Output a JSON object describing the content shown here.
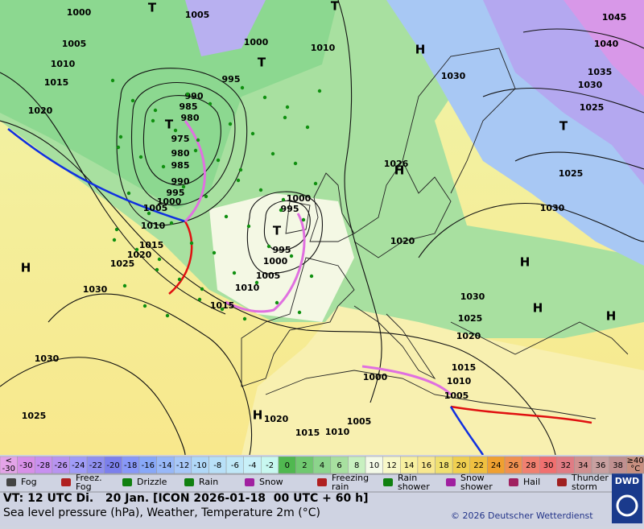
{
  "map": {
    "centers": [
      "H",
      "H",
      "H",
      "H",
      "H",
      "H",
      "H",
      "T",
      "T",
      "T",
      "T",
      "T",
      "T"
    ],
    "pressure_labels": [
      "1000",
      "1005",
      "1045",
      "1040",
      "1035",
      "1030",
      "1025",
      "1025",
      "1030",
      "1020",
      "995",
      "990",
      "985",
      "980",
      "975",
      "980",
      "985",
      "990",
      "995",
      "1000",
      "1005",
      "1010",
      "1015",
      "1020",
      "1025",
      "1030",
      "1030",
      "1025",
      "1020",
      "1015",
      "1010",
      "1005",
      "1000",
      "1000",
      "995",
      "995",
      "1000",
      "1005",
      "1010",
      "1015",
      "1030",
      "1025",
      "1020",
      "1015",
      "1010",
      "1005",
      "1000",
      "1005",
      "1010",
      "1015",
      "1020",
      "1026",
      "1030",
      "1010"
    ]
  },
  "scale": [
    [
      "<",
      "-30"
    ],
    [
      "-30"
    ],
    [
      "-28"
    ],
    [
      "-26"
    ],
    [
      "-24"
    ],
    [
      "-22"
    ],
    [
      "-20"
    ],
    [
      "-18"
    ],
    [
      "-16"
    ],
    [
      "-14"
    ],
    [
      "-12"
    ],
    [
      "-10"
    ],
    [
      "-8"
    ],
    [
      "-6"
    ],
    [
      "-4"
    ],
    [
      "-2"
    ],
    [
      "0"
    ],
    [
      "2"
    ],
    [
      "4"
    ],
    [
      "6"
    ],
    [
      "8"
    ],
    [
      "10"
    ],
    [
      "12"
    ],
    [
      "14"
    ],
    [
      "16"
    ],
    [
      "18"
    ],
    [
      "20"
    ],
    [
      "22"
    ],
    [
      "24"
    ],
    [
      "26"
    ],
    [
      "28"
    ],
    [
      "30"
    ],
    [
      "32"
    ],
    [
      "34"
    ],
    [
      "36"
    ],
    [
      "38"
    ],
    [
      "≥40",
      "°C"
    ]
  ],
  "scale_colors": [
    "#e4a4e8",
    "#d890e8",
    "#c890f0",
    "#b894f0",
    "#a09cf8",
    "#9090f0",
    "#7c80ec",
    "#8898f8",
    "#88a8f8",
    "#98b8f8",
    "#a8c8f8",
    "#b0d8f8",
    "#b8e0f8",
    "#c0e8f8",
    "#c8f0f8",
    "#c8f8f0",
    "#50b850",
    "#70c870",
    "#8cd48c",
    "#a8e0a0",
    "#c8f0c0",
    "#f4fae8",
    "#f8f8c8",
    "#f8f0a0",
    "#f8e890",
    "#f0e070",
    "#f0d050",
    "#f0c040",
    "#f0a030",
    "#f09050",
    "#f08070",
    "#f07070",
    "#e07c84",
    "#d09090",
    "#c8a0a0",
    "#c09090",
    "#c89080"
  ],
  "legend": [
    [
      "Fog"
    ],
    [
      "Freez.",
      "Fog"
    ],
    [
      "Drizzle"
    ],
    [
      "Rain"
    ],
    [
      "Snow"
    ],
    [
      "Freezing",
      "rain"
    ],
    [
      "Rain",
      "shower"
    ],
    [
      "Snow",
      "shower"
    ],
    [
      "Hail"
    ],
    [
      "Thunder",
      "storm"
    ]
  ],
  "footer": {
    "valid_time": "VT: 12 UTC Di.   20 Jan. [ICON 2026-01-18  00 UTC + 60 h]",
    "description": "Sea level pressure (hPa), Weather, Temperature 2m (°C)",
    "copyright": "© 2026 Deutscher Wetterdienst",
    "logo": "DWD"
  }
}
